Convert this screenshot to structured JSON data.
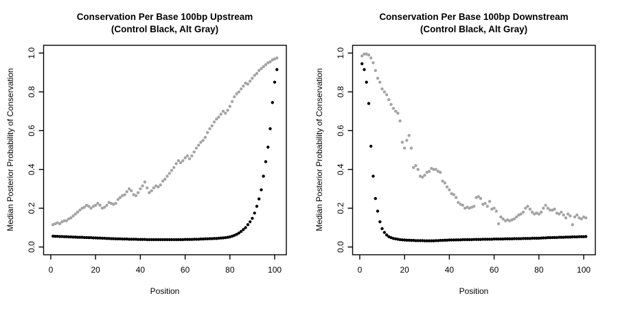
{
  "page": {
    "background_color": "#ffffff",
    "foreground_color": "#000000"
  },
  "chart_data": [
    {
      "id": "upstream",
      "type": "scatter",
      "title": "Conservation Per Base 100bp Upstream",
      "subtitle": "(Control Black, Alt Gray)",
      "xlabel": "Position",
      "ylabel": "Median Posterior Probability of Conservation",
      "xlim": [
        -3.2,
        105.2
      ],
      "ylim": [
        -0.04,
        1.04
      ],
      "x_ticks": [
        0,
        20,
        40,
        60,
        80,
        100
      ],
      "y_ticks": [
        "0.0",
        "0.2",
        "0.4",
        "0.6",
        "0.8",
        "1.0"
      ],
      "grid": false,
      "legend_position": "none (encoded in subtitle)",
      "x_positions": {
        "from": 1,
        "to": 101,
        "step": 1
      },
      "series": [
        {
          "name": "Control",
          "color": "#000000",
          "values": [
            0.056,
            0.055,
            0.055,
            0.054,
            0.054,
            0.053,
            0.053,
            0.052,
            0.052,
            0.051,
            0.051,
            0.05,
            0.05,
            0.05,
            0.049,
            0.049,
            0.048,
            0.048,
            0.047,
            0.047,
            0.046,
            0.046,
            0.045,
            0.045,
            0.044,
            0.044,
            0.043,
            0.043,
            0.042,
            0.042,
            0.042,
            0.041,
            0.041,
            0.041,
            0.04,
            0.04,
            0.04,
            0.04,
            0.039,
            0.039,
            0.039,
            0.039,
            0.038,
            0.038,
            0.038,
            0.038,
            0.038,
            0.038,
            0.038,
            0.038,
            0.038,
            0.038,
            0.038,
            0.038,
            0.038,
            0.038,
            0.038,
            0.038,
            0.038,
            0.039,
            0.039,
            0.039,
            0.039,
            0.04,
            0.04,
            0.04,
            0.041,
            0.041,
            0.042,
            0.042,
            0.043,
            0.043,
            0.044,
            0.044,
            0.045,
            0.046,
            0.047,
            0.048,
            0.05,
            0.052,
            0.056,
            0.06,
            0.065,
            0.072,
            0.08,
            0.09,
            0.1,
            0.115,
            0.13,
            0.148,
            0.175,
            0.21,
            0.248,
            0.295,
            0.365,
            0.44,
            0.515,
            0.61,
            0.745,
            0.85,
            0.915
          ]
        },
        {
          "name": "Alt",
          "color": "#a4a4a4",
          "values": [
            0.115,
            0.12,
            0.125,
            0.12,
            0.13,
            0.135,
            0.135,
            0.145,
            0.15,
            0.16,
            0.17,
            0.18,
            0.19,
            0.2,
            0.205,
            0.215,
            0.21,
            0.2,
            0.21,
            0.215,
            0.225,
            0.215,
            0.2,
            0.205,
            0.215,
            0.23,
            0.225,
            0.22,
            0.225,
            0.245,
            0.255,
            0.265,
            0.27,
            0.285,
            0.3,
            0.29,
            0.27,
            0.265,
            0.28,
            0.3,
            0.315,
            0.335,
            0.305,
            0.28,
            0.29,
            0.305,
            0.315,
            0.31,
            0.32,
            0.34,
            0.35,
            0.365,
            0.38,
            0.395,
            0.41,
            0.43,
            0.445,
            0.435,
            0.445,
            0.46,
            0.47,
            0.455,
            0.47,
            0.49,
            0.51,
            0.525,
            0.54,
            0.55,
            0.565,
            0.59,
            0.61,
            0.625,
            0.645,
            0.66,
            0.67,
            0.685,
            0.7,
            0.69,
            0.705,
            0.725,
            0.75,
            0.775,
            0.79,
            0.8,
            0.815,
            0.83,
            0.845,
            0.84,
            0.855,
            0.87,
            0.885,
            0.895,
            0.91,
            0.92,
            0.93,
            0.94,
            0.95,
            0.955,
            0.965,
            0.97,
            0.975
          ]
        }
      ]
    },
    {
      "id": "downstream",
      "type": "scatter",
      "title": "Conservation Per Base 100bp Downstream",
      "subtitle": "(Control Black, Alt Gray)",
      "xlabel": "Position",
      "ylabel": "Median Posterior Probability of Conservation",
      "xlim": [
        -3.2,
        105.2
      ],
      "ylim": [
        -0.04,
        1.04
      ],
      "x_ticks": [
        0,
        20,
        40,
        60,
        80,
        100
      ],
      "y_ticks": [
        "0.0",
        "0.2",
        "0.4",
        "0.6",
        "0.8",
        "1.0"
      ],
      "grid": false,
      "legend_position": "none (encoded in subtitle)",
      "x_positions": {
        "from": 1,
        "to": 101,
        "step": 1
      },
      "series": [
        {
          "name": "Control",
          "color": "#000000",
          "values": [
            0.945,
            0.915,
            0.85,
            0.74,
            0.52,
            0.365,
            0.25,
            0.185,
            0.13,
            0.095,
            0.075,
            0.062,
            0.053,
            0.048,
            0.044,
            0.042,
            0.04,
            0.038,
            0.037,
            0.036,
            0.035,
            0.035,
            0.034,
            0.034,
            0.033,
            0.033,
            0.033,
            0.033,
            0.032,
            0.032,
            0.032,
            0.032,
            0.032,
            0.033,
            0.033,
            0.034,
            0.034,
            0.035,
            0.035,
            0.036,
            0.036,
            0.036,
            0.037,
            0.037,
            0.037,
            0.038,
            0.038,
            0.038,
            0.038,
            0.038,
            0.039,
            0.039,
            0.039,
            0.039,
            0.04,
            0.04,
            0.04,
            0.04,
            0.04,
            0.041,
            0.041,
            0.041,
            0.041,
            0.041,
            0.042,
            0.042,
            0.042,
            0.042,
            0.043,
            0.043,
            0.043,
            0.043,
            0.044,
            0.044,
            0.044,
            0.044,
            0.045,
            0.045,
            0.045,
            0.045,
            0.046,
            0.047,
            0.047,
            0.048,
            0.048,
            0.049,
            0.049,
            0.049,
            0.05,
            0.05,
            0.05,
            0.051,
            0.051,
            0.051,
            0.052,
            0.052,
            0.052,
            0.053,
            0.053,
            0.053,
            0.054
          ]
        },
        {
          "name": "Alt",
          "color": "#a4a4a4",
          "values": [
            0.985,
            0.995,
            0.995,
            0.99,
            0.975,
            0.95,
            0.91,
            0.87,
            0.85,
            0.815,
            0.8,
            0.785,
            0.76,
            0.735,
            0.715,
            0.7,
            0.69,
            0.65,
            0.54,
            0.51,
            0.55,
            0.575,
            0.51,
            0.41,
            0.42,
            0.4,
            0.365,
            0.36,
            0.37,
            0.385,
            0.39,
            0.405,
            0.4,
            0.4,
            0.39,
            0.385,
            0.34,
            0.33,
            0.31,
            0.295,
            0.275,
            0.27,
            0.255,
            0.23,
            0.22,
            0.215,
            0.2,
            0.205,
            0.2,
            0.205,
            0.21,
            0.255,
            0.26,
            0.25,
            0.22,
            0.225,
            0.21,
            0.235,
            0.195,
            0.2,
            0.185,
            0.12,
            0.155,
            0.145,
            0.135,
            0.14,
            0.135,
            0.14,
            0.145,
            0.155,
            0.165,
            0.17,
            0.18,
            0.2,
            0.21,
            0.195,
            0.18,
            0.17,
            0.175,
            0.17,
            0.18,
            0.2,
            0.215,
            0.2,
            0.19,
            0.19,
            0.195,
            0.175,
            0.17,
            0.18,
            0.165,
            0.15,
            0.17,
            0.16,
            0.115,
            0.155,
            0.165,
            0.15,
            0.145,
            0.155,
            0.15
          ]
        }
      ]
    }
  ]
}
